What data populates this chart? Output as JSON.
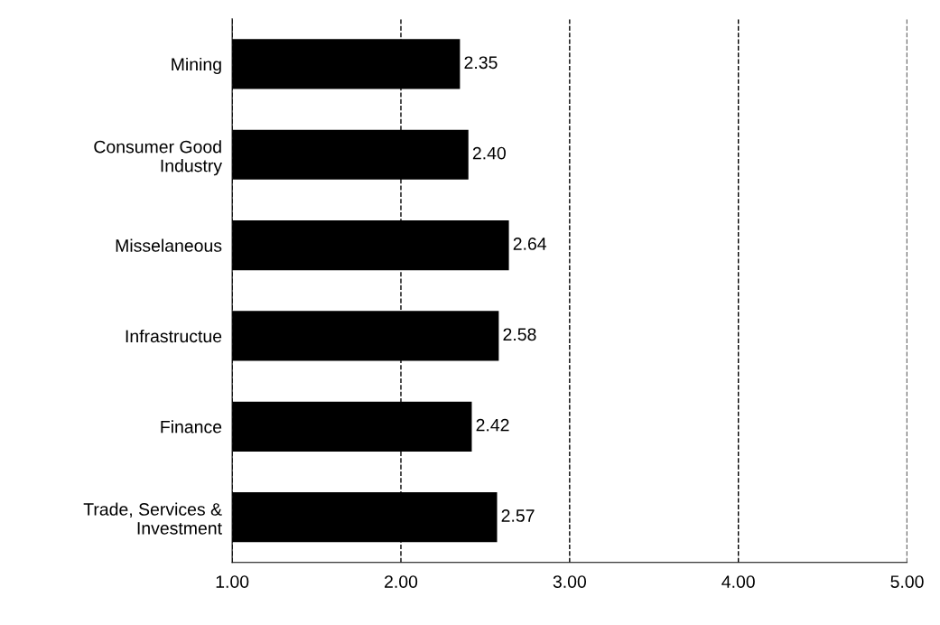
{
  "chart_data": {
    "type": "bar",
    "orientation": "horizontal",
    "categories": [
      "Mining",
      "Consumer Good\nIndustry",
      "Misselaneous",
      "Infrastructue",
      "Finance",
      "Trade, Services &\nInvestment"
    ],
    "values": [
      2.35,
      2.4,
      2.64,
      2.58,
      2.42,
      2.57
    ],
    "value_labels": [
      "2.35",
      "2.40",
      "2.64",
      "2.58",
      "2.42",
      "2.57"
    ],
    "color": "#000000",
    "xlim": [
      1,
      5
    ],
    "xticks": [
      {
        "value": 1,
        "label": "1.00"
      },
      {
        "value": 2,
        "label": "2.00"
      },
      {
        "value": 3,
        "label": "3.00"
      },
      {
        "value": 4,
        "label": "4.00"
      },
      {
        "value": 5,
        "label": "5.00"
      }
    ],
    "grid": "x",
    "line_style": "dashed"
  }
}
